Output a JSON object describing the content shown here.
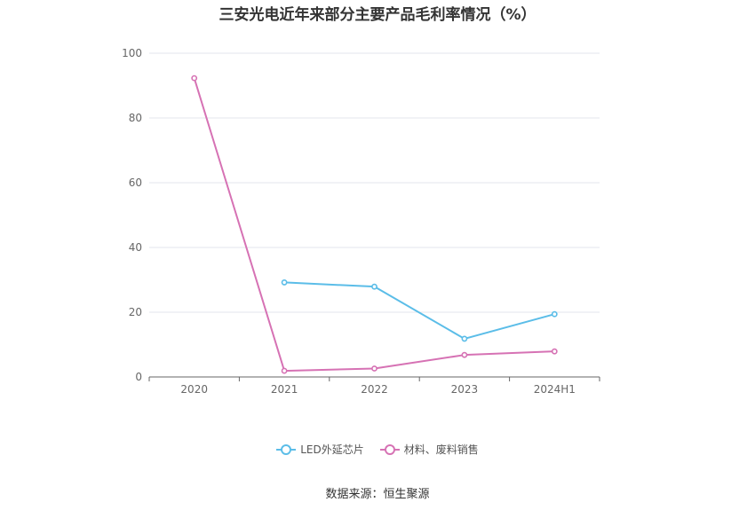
{
  "chart_data": {
    "type": "line",
    "title": "三安光电近年来部分主要产品毛利率情况（%）",
    "categories": [
      "2020",
      "2021",
      "2022",
      "2023",
      "2024H1"
    ],
    "series": [
      {
        "name": "LED外延芯片",
        "color": "#5bbde8",
        "values": [
          null,
          29.2,
          27.9,
          11.8,
          19.4
        ]
      },
      {
        "name": "材料、废料销售",
        "color": "#d672b4",
        "values": [
          92.3,
          1.9,
          2.6,
          6.8,
          7.9
        ]
      }
    ],
    "ylim": [
      0,
      100
    ],
    "yticks": [
      0,
      20,
      40,
      60,
      80,
      100
    ],
    "legend_position": "bottom-center",
    "grid": true
  },
  "source": "数据来源：恒生聚源"
}
